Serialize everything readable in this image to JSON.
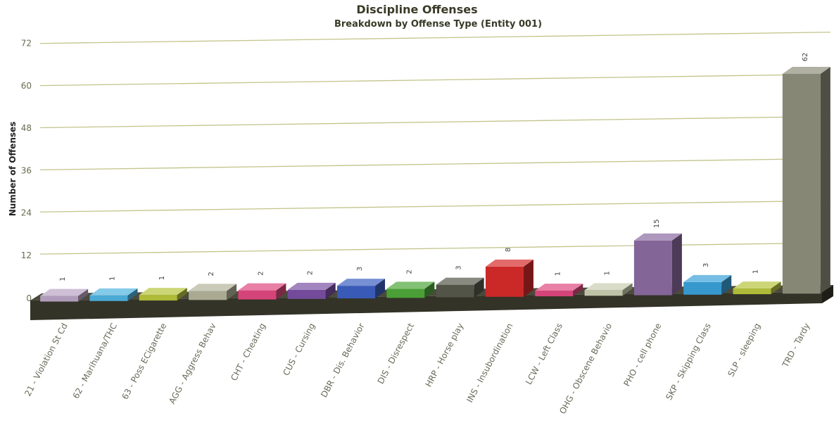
{
  "chart_data": {
    "type": "bar",
    "title": "Discipline Offenses",
    "subtitle": "Breakdown by Offense Type (Entity 001)",
    "ylabel": "Number of Offenses",
    "xlabel": "",
    "ylim": [
      0,
      72
    ],
    "yticks": [
      "0",
      "12",
      "24",
      "36",
      "48",
      "60",
      "72"
    ],
    "grid": true,
    "categories": [
      "21 - Violation St Cd",
      "62 - Marihuana/THC",
      "63 - Poss ECigarette",
      "AGG - Aggress Behav",
      "CHT - Cheating",
      "CUS - Cursing",
      "DBR - Dis. Behavior",
      "DIS - Disrespect",
      "HRP - Horse play",
      "INS - Insubordination",
      "LCW - Left Class",
      "OHG - Obscene Behavio",
      "PHO - cell phone",
      "SKP - Skipping Class",
      "SLP - sleeping",
      "TRD - Tardy"
    ],
    "values": [
      1,
      1,
      1,
      2,
      2,
      2,
      3,
      2,
      3,
      8,
      1,
      1,
      15,
      3,
      1,
      62
    ],
    "data_labels": [
      "1",
      "1",
      "1",
      "2",
      "2",
      "2",
      "3",
      "2",
      "3",
      "8",
      "1",
      "1",
      "15",
      "3",
      "1",
      "62"
    ],
    "colors": [
      "#b9a4c4",
      "#4fb3e0",
      "#b8c43c",
      "#b3b39a",
      "#e0487e",
      "#7a4fa3",
      "#3c5fc0",
      "#4ea83a",
      "#55584a",
      "#d62a2a",
      "#e0487e",
      "#c9cdb0",
      "#8a6aa0",
      "#3aa0d8",
      "#b8c43c",
      "#8e8e7c"
    ],
    "floor_color": "#333328",
    "grid_color": "#c2c48a"
  }
}
